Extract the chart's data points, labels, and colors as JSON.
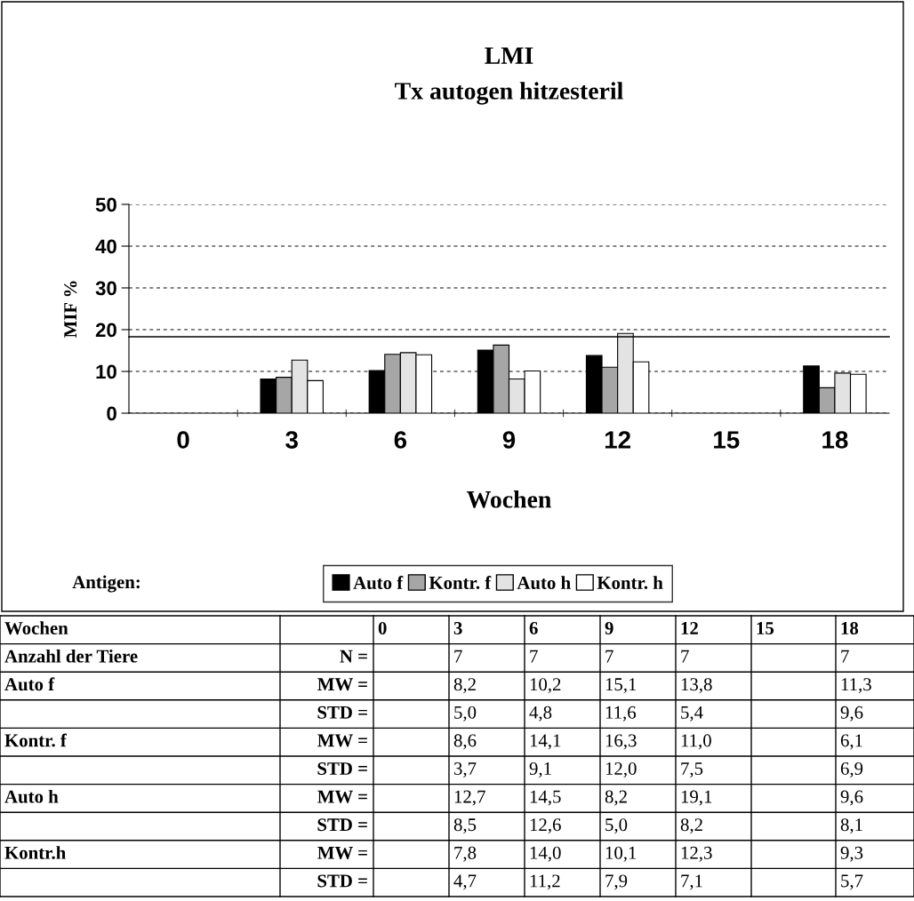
{
  "chart_data": [
    {
      "type": "bar",
      "title": "LMI",
      "subtitle": "Tx autogen hitzesteril",
      "xlabel": "Wochen",
      "ylabel": "MIF %",
      "legend_title": "Antigen:",
      "categories": [
        "0",
        "3",
        "6",
        "9",
        "12",
        "15",
        "18"
      ],
      "series": [
        {
          "name": "Auto f",
          "color": "#000000",
          "values": [
            null,
            8.2,
            10.2,
            15.1,
            13.8,
            null,
            11.3
          ]
        },
        {
          "name": "Kontr. f",
          "color": "#a6a6a6",
          "values": [
            null,
            8.6,
            14.1,
            16.3,
            11.0,
            null,
            6.1
          ]
        },
        {
          "name": "Auto h",
          "color": "#e3e3e3",
          "values": [
            null,
            12.7,
            14.5,
            8.2,
            19.1,
            null,
            9.6
          ]
        },
        {
          "name": "Kontr. h",
          "color": "#ffffff",
          "values": [
            null,
            7.8,
            14.0,
            10.1,
            12.3,
            null,
            9.3
          ]
        }
      ],
      "ylim": [
        0,
        50
      ],
      "yticks": [
        0,
        10,
        20,
        30,
        40,
        50
      ],
      "grid": "y",
      "legend": "bottom",
      "ref_lines": [
        {
          "axis": "y",
          "value": 18.3,
          "color": "#000000",
          "line_style": "solid"
        }
      ]
    },
    {
      "type": "other",
      "y_categories": [
        "Anzahl der Tiere",
        "Auto f",
        null,
        "Kontr. f",
        null,
        "Auto h",
        null,
        "Kontr.h",
        null
      ],
      "y2_categories": [
        "N =",
        "MW =",
        "STD =",
        "MW =",
        "STD =",
        "MW =",
        "STD =",
        "MW =",
        "STD ="
      ],
      "cell_labels": [
        [
          null,
          "7",
          "7",
          "7",
          "7",
          null,
          "7"
        ],
        [
          null,
          "8,2",
          "10,2",
          "15,1",
          "13,8",
          null,
          "11,3"
        ],
        [
          null,
          "5,0",
          "4,8",
          "11,6",
          "5,4",
          null,
          "9,6"
        ],
        [
          null,
          "8,6",
          "14,1",
          "16,3",
          "11,0",
          null,
          "6,1"
        ],
        [
          null,
          "3,7",
          "9,1",
          "12,0",
          "7,5",
          null,
          "6,9"
        ],
        [
          null,
          "12,7",
          "14,5",
          "8,2",
          "19,1",
          null,
          "9,6"
        ],
        [
          null,
          "8,5",
          "12,6",
          "5,0",
          "8,2",
          null,
          "8,1"
        ],
        [
          null,
          "7,8",
          "14,0",
          "10,1",
          "12,3",
          null,
          "9,3"
        ],
        [
          null,
          "4,7",
          "11,2",
          "7,9",
          "7,1",
          null,
          "5,7"
        ]
      ]
    }
  ]
}
